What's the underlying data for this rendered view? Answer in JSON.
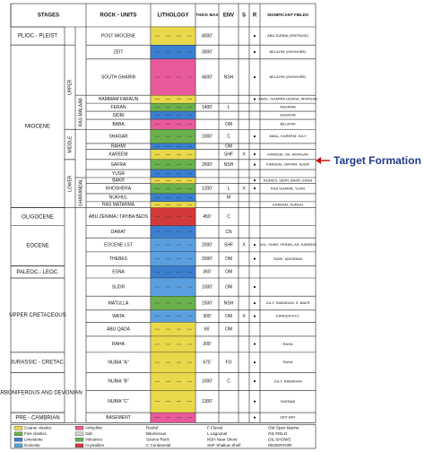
{
  "header": [
    "STAGES",
    "ROCK - UNITS",
    "LITHOLOGY",
    "THICK MAX",
    "ENV",
    "S",
    "R",
    "SIGNIFICANT FIELDS"
  ],
  "rows": [
    {
      "unit": "POST MIOCENE",
      "thick": "4000'",
      "env": "",
      "s": "",
      "r": "●",
      "fields": "ABU DURBA (SEEPAGE)",
      "color": "#e8d84a"
    },
    {
      "unit": "ZEIT",
      "thick": "3000'",
      "env": "",
      "s": "",
      "r": "●",
      "fields": "BELAYIM (ONSHORE)",
      "color": "#3b7fd0"
    },
    {
      "unit": "SOUTH GHARIB",
      "thick": "4600'",
      "env": "NSH",
      "s": "",
      "r": "●",
      "fields": "BELAYIM (ONSHORE)",
      "color": "#e85a9a"
    },
    {
      "unit": "HAMMAM FARAUN",
      "thick": "",
      "env": "",
      "s": "",
      "r": "●",
      "fields": "AMAL, GHARRA GEMSA, MORGAN",
      "color": "#e8d84a"
    },
    {
      "unit": "FERAN",
      "thick": "1400'",
      "env": "L",
      "s": "",
      "r": "",
      "fields": "ASHARIB",
      "color": "#6ab04c"
    },
    {
      "unit": "SIDRI",
      "thick": "",
      "env": "",
      "s": "",
      "r": "",
      "fields": "SHUKEIR",
      "color": "#3b7fd0"
    },
    {
      "unit": "BABA",
      "thick": "",
      "env": "OM",
      "s": "",
      "r": "",
      "fields": "BELAYIM",
      "color": "#e85a9a"
    },
    {
      "unit": "SHAGAR",
      "thick": "1000'",
      "env": "C",
      "s": "",
      "r": "●",
      "fields": "AMAL, KAREEM, JULY",
      "color": "#6ab04c"
    },
    {
      "unit": "RAHMI",
      "thick": "",
      "env": "OM",
      "s": "",
      "r": "",
      "fields": "",
      "color": "#3b7fd0"
    },
    {
      "unit": "KAREEM",
      "thick": "",
      "env": "SHF",
      "s": "X",
      "r": "●",
      "fields": "KAREEM, GH, MORGAN",
      "color": "#e8d84a"
    },
    {
      "unit": "SAFRA",
      "thick": "2500'",
      "env": "NSH",
      "s": "",
      "r": "●",
      "fields": "KAREEM, JAFFAR, SUDR",
      "color": "#6ab04c"
    },
    {
      "unit": "YUSR",
      "thick": "",
      "env": "",
      "s": "",
      "r": "",
      "fields": "",
      "color": "#3b7fd0"
    },
    {
      "unit": "BAKR",
      "thick": "",
      "env": "",
      "s": "",
      "r": "●",
      "fields": "RUDEIS, SIDRI, BAKR, EKNA",
      "color": "#e8d84a"
    },
    {
      "unit": "KHOSHERA",
      "thick": "1200'",
      "env": "L",
      "s": "X",
      "r": "●",
      "fields": "RAS GHARIB, YUSR",
      "color": "#6ab04c"
    },
    {
      "unit": "NUKHUL",
      "thick": "",
      "env": "M",
      "s": "",
      "r": "",
      "fields": "",
      "color": "#3b7fd0"
    },
    {
      "unit": "RAS MATARMA",
      "thick": "",
      "env": "",
      "s": "",
      "r": "",
      "fields": "KAREEM, HURGH",
      "color": "#e8d84a"
    },
    {
      "unit": "ABU ZENIMA / TAYIBA BEDS",
      "thick": "450'",
      "env": "C",
      "s": "",
      "r": "",
      "fields": "",
      "color": "#d23a3a"
    },
    {
      "unit": "DARAT",
      "thick": "",
      "env": "CN",
      "s": "",
      "r": "",
      "fields": "",
      "color": "#3b7fd0"
    },
    {
      "unit": "EOCENE LST",
      "thick": "2000'",
      "env": "SHF",
      "s": "X",
      "r": "●",
      "fields": "ASL, SHAR, FERAN, AS, KAREEM",
      "color": "#5aa0e0"
    },
    {
      "unit": "THEBES",
      "thick": "2000'",
      "env": "OM",
      "s": "",
      "r": "●",
      "fields": "SIDRI, MATARMA",
      "color": "#5aa0e0"
    },
    {
      "unit": "ESNA",
      "thick": "360'",
      "env": "OM",
      "s": "",
      "r": "",
      "fields": "",
      "color": "#3b7fd0"
    },
    {
      "unit": "SUDR",
      "thick": "1000'",
      "env": "OM",
      "s": "",
      "r": "●",
      "fields": "",
      "color": "#5aa0e0"
    },
    {
      "unit": "MATULLA",
      "thick": "1500'",
      "env": "NSH",
      "s": "",
      "r": "●",
      "fields": "JULY, RAMADAN, S. BAKR",
      "color": "#6ab04c"
    },
    {
      "unit": "WATA",
      "thick": "300'",
      "env": "OM",
      "s": "X",
      "r": "●",
      "fields": "KAREEM ETC",
      "color": "#5aa0e0"
    },
    {
      "unit": "ABU QADA",
      "thick": "65'",
      "env": "OM",
      "s": "",
      "r": "",
      "fields": "",
      "color": "#e8d84a"
    },
    {
      "unit": "RAHA",
      "thick": "200'",
      "env": "",
      "s": "",
      "r": "●",
      "fields": "RAHA",
      "color": "#e8d84a"
    },
    {
      "unit": "NUBIA \"A\"",
      "thick": "675'",
      "env": "FO",
      "s": "",
      "r": "●",
      "fields": "RAHA",
      "color": "#e8d84a"
    },
    {
      "unit": "NUBIA \"B\"",
      "thick": "1000'",
      "env": "C",
      "s": "",
      "r": "●",
      "fields": "JULY, RAMADAN",
      "color": "#e8d84a"
    },
    {
      "unit": "NUBIA \"C\"",
      "thick": "1300'",
      "env": "",
      "s": "",
      "r": "●",
      "fields": "SHEBAB",
      "color": "#e8d84a"
    },
    {
      "unit": "BASEMENT",
      "thick": "",
      "env": "",
      "s": "",
      "r": "●",
      "fields": "ZEIT BAY",
      "color": "#e85a9a"
    }
  ],
  "stages": [
    {
      "label": "PLIOC.- PLEIST",
      "from": 0,
      "to": 0
    },
    {
      "label": "MIOCENE",
      "from": 1,
      "to": 15
    },
    {
      "label": "OLIGOCENE",
      "from": 16,
      "to": 16
    },
    {
      "label": "EOCENE",
      "from": 17,
      "to": 19
    },
    {
      "label": "PALEOC.- LEOC.",
      "from": 20,
      "to": 20
    },
    {
      "label": "UPPER CRETACEOUS",
      "from": 21,
      "to": 25
    },
    {
      "label": "JURASSIC - CRETAC.",
      "from": 26,
      "to": 26
    },
    {
      "label": "CARBONIFEROUS AND DEVONIAN",
      "from": 27,
      "to": 28
    },
    {
      "label": "PRE - CAMBRIAN",
      "from": 29,
      "to": 29
    }
  ],
  "substages": [
    {
      "label": "UPPER",
      "from": 1,
      "to": 6
    },
    {
      "label": "MIDDLE",
      "from": 7,
      "to": 9
    },
    {
      "label": "LOWER",
      "from": 10,
      "to": 15
    }
  ],
  "groups": [
    {
      "label": "RAS MALAAB",
      "from": 3,
      "to": 6
    },
    {
      "label": "GHARANDAL",
      "from": 12,
      "to": 15
    }
  ],
  "legend": [
    "Coarse clastics",
    "Fine clastics",
    "Limestone",
    "Dolomite",
    "Anhydrite",
    "Salt",
    "Volcanics",
    "Crystalline",
    "Reefal",
    "Bituminous",
    "Source Rock",
    "C Continental",
    "F Fluvial",
    "L Lagoonal",
    "NSH Near Shore",
    "SHF Shallow Shelf",
    "OM Open Marine",
    "OIL FIELD",
    "OIL SHOWS",
    "RESERVOIR"
  ],
  "legend_colors": [
    "#e8d84a",
    "#6ab04c",
    "#3b7fd0",
    "#5aa0e0",
    "#e85a9a",
    "#d0d0d0",
    "#6ab04c",
    "#d23a3a"
  ],
  "annotation": "Target Formation"
}
